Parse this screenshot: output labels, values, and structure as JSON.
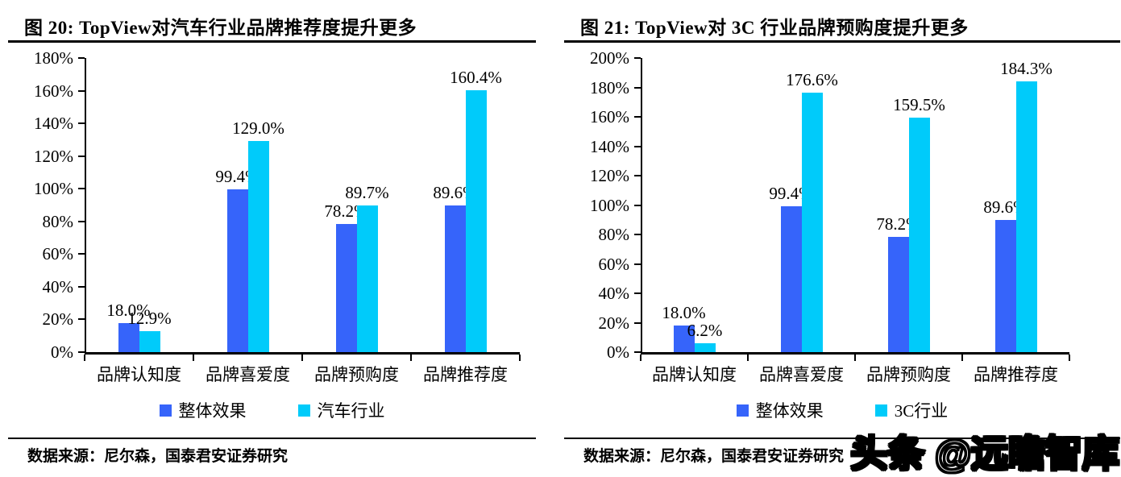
{
  "watermark": {
    "text": "头条 @远瞻智库"
  },
  "colors": {
    "series_blue": "#3664FA",
    "series_cyan": "#00CBFA",
    "axis": "#000000"
  },
  "chart_data": [
    {
      "type": "bar",
      "title": "图 20:  TopView对汽车行业品牌推荐度提升更多",
      "categories": [
        "品牌认知度",
        "品牌喜爱度",
        "品牌预购度",
        "品牌推荐度"
      ],
      "series": [
        {
          "name": "整体效果",
          "color": "#3664FA",
          "values": [
            18.0,
            99.4,
            78.2,
            89.6
          ],
          "labels": [
            "18.0%",
            "99.4%",
            "78.2%",
            "89.6%"
          ]
        },
        {
          "name": "汽车行业",
          "color": "#00CBFA",
          "values": [
            12.9,
            129.0,
            89.7,
            160.4
          ],
          "labels": [
            "12.9%",
            "129.0%",
            "89.7%",
            "160.4%"
          ]
        }
      ],
      "ylim": [
        0,
        180
      ],
      "yticks": [
        "0%",
        "20%",
        "40%",
        "60%",
        "80%",
        "100%",
        "120%",
        "140%",
        "160%",
        "180%"
      ],
      "grid": false,
      "legend_position": "bottom",
      "source": "数据来源：尼尔森，国泰君安证券研究"
    },
    {
      "type": "bar",
      "title": "图 21:  TopView对 3C 行业品牌预购度提升更多",
      "categories": [
        "品牌认知度",
        "品牌喜爱度",
        "品牌预购度",
        "品牌推荐度"
      ],
      "series": [
        {
          "name": "整体效果",
          "color": "#3664FA",
          "values": [
            18.0,
            99.4,
            78.2,
            89.6
          ],
          "labels": [
            "18.0%",
            "99.4%",
            "78.2%",
            "89.6%"
          ]
        },
        {
          "name": "3C行业",
          "color": "#00CBFA",
          "values": [
            6.2,
            176.6,
            159.5,
            184.3
          ],
          "labels": [
            "6.2%",
            "176.6%",
            "159.5%",
            "184.3%"
          ]
        }
      ],
      "ylim": [
        0,
        200
      ],
      "yticks": [
        "0%",
        "20%",
        "40%",
        "60%",
        "80%",
        "100%",
        "120%",
        "140%",
        "160%",
        "180%",
        "200%"
      ],
      "grid": false,
      "legend_position": "bottom",
      "source": "数据来源：尼尔森，国泰君安证券研究"
    }
  ]
}
